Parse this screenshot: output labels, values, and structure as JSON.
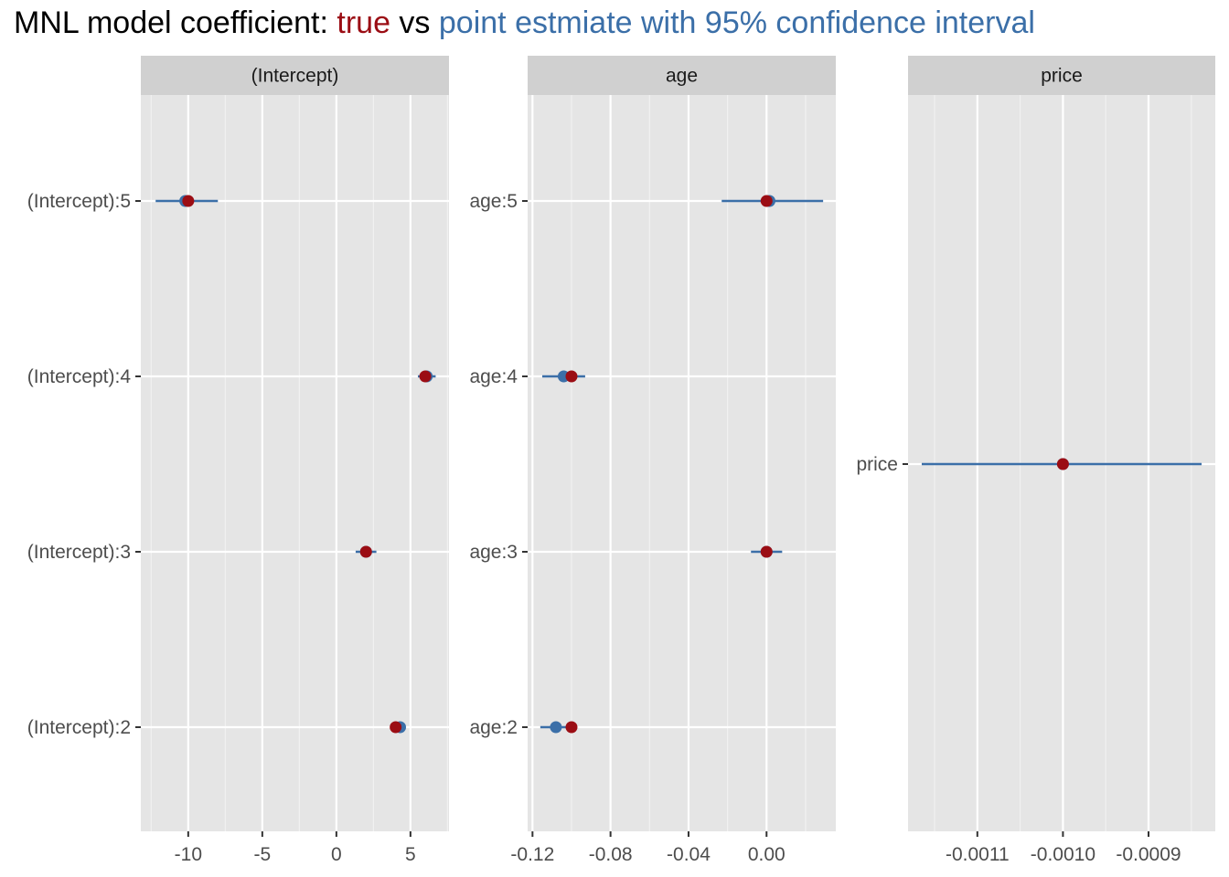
{
  "title": {
    "prefix": "MNL model coefficient: ",
    "true_label": "true",
    "middle": " vs ",
    "estimate_label": "point estmiate with 95% confidence interval"
  },
  "colors": {
    "true": "#9B0D14",
    "estimate": "#3B6FA8",
    "panel_bg": "#E5E5E5",
    "strip_bg": "#D0D0D0",
    "grid_major": "#FFFFFF",
    "grid_minor": "#F2F2F2",
    "axis_text": "#4D4D4D"
  },
  "chart_data": [
    {
      "type": "scatter",
      "subtype": "pointrange",
      "facet": "(Intercept)",
      "categories": [
        "(Intercept):5",
        "(Intercept):4",
        "(Intercept):3",
        "(Intercept):2"
      ],
      "true_values": [
        -10,
        6,
        2,
        4
      ],
      "estimates": [
        -10.2,
        6.1,
        2.0,
        4.3
      ],
      "ci_low": [
        -12.2,
        5.5,
        1.3,
        3.9
      ],
      "ci_high": [
        -8.0,
        6.7,
        2.7,
        4.5
      ],
      "xlim": [
        -13.2,
        7.6
      ],
      "xticks": [
        -10,
        -5,
        0,
        5
      ],
      "xtick_labels": [
        "-10",
        "-5",
        "0",
        "5"
      ],
      "minor_ticks": [
        -12.5,
        -7.5,
        -2.5,
        2.5,
        7.5
      ],
      "grid": true
    },
    {
      "type": "scatter",
      "subtype": "pointrange",
      "facet": "age",
      "categories": [
        "age:5",
        "age:4",
        "age:3",
        "age:2"
      ],
      "true_values": [
        0.0,
        -0.1,
        0.0,
        -0.1
      ],
      "estimates": [
        0.0015,
        -0.104,
        0.0,
        -0.108
      ],
      "ci_low": [
        -0.023,
        -0.115,
        -0.008,
        -0.116
      ],
      "ci_high": [
        0.029,
        -0.093,
        0.008,
        -0.101
      ],
      "xlim": [
        -0.1225,
        0.0355
      ],
      "xticks": [
        -0.12,
        -0.08,
        -0.04,
        0.0
      ],
      "xtick_labels": [
        "-0.12",
        "-0.08",
        "-0.04",
        "0.00"
      ],
      "minor_ticks": [
        -0.1,
        -0.06,
        -0.02,
        0.02
      ],
      "grid": true
    },
    {
      "type": "scatter",
      "subtype": "pointrange",
      "facet": "price",
      "categories": [
        "price"
      ],
      "true_values": [
        -0.001
      ],
      "estimates": [
        -0.001
      ],
      "ci_low": [
        -0.001165
      ],
      "ci_high": [
        -0.000838
      ],
      "xlim": [
        -0.001181,
        -0.000822
      ],
      "xticks": [
        -0.0011,
        -0.001,
        -0.0009
      ],
      "xtick_labels": [
        "-0.0011",
        "-0.0010",
        "-0.0009"
      ],
      "minor_ticks": [
        -0.00115,
        -0.00105,
        -0.00095,
        -0.00085
      ],
      "grid": true
    }
  ]
}
